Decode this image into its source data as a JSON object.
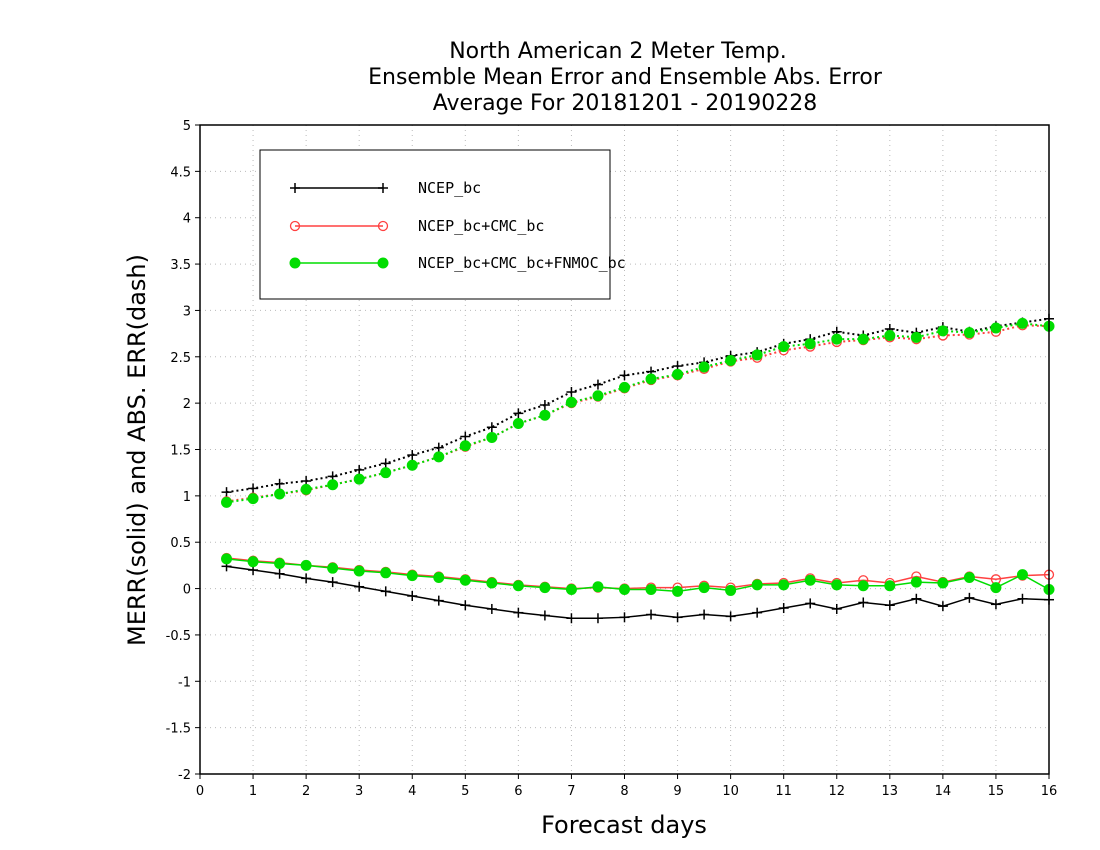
{
  "chart_data": {
    "type": "line",
    "title_lines": [
      "North American 2 Meter Temp.",
      "Ensemble Mean Error and Ensemble Abs. Error",
      "Average For 20181201 - 20190228"
    ],
    "xlabel": "Forecast days",
    "ylabel": "MERR(solid) and ABS. ERR(dash)",
    "xlim": [
      0,
      16
    ],
    "ylim": [
      -2,
      5
    ],
    "xticks": [
      "0",
      "1",
      "2",
      "3",
      "4",
      "5",
      "6",
      "7",
      "8",
      "9",
      "10",
      "11",
      "12",
      "13",
      "14",
      "15",
      "16"
    ],
    "yticks": [
      "-2",
      "-1.5",
      "-1",
      "-0.5",
      "0",
      "0.5",
      "1",
      "1.5",
      "2",
      "2.5",
      "3",
      "3.5",
      "4",
      "4.5",
      "5"
    ],
    "grid": true,
    "legend_position": "top-left",
    "x": [
      0.5,
      1,
      1.5,
      2,
      2.5,
      3,
      3.5,
      4,
      4.5,
      5,
      5.5,
      6,
      6.5,
      7,
      7.5,
      8,
      8.5,
      9,
      9.5,
      10,
      10.5,
      11,
      11.5,
      12,
      12.5,
      13,
      13.5,
      14,
      14.5,
      15,
      15.5,
      16
    ],
    "series": [
      {
        "name": "NCEP_bc",
        "color": "#000000",
        "marker": "plus",
        "merr": [
          0.24,
          0.2,
          0.16,
          0.11,
          0.07,
          0.02,
          -0.03,
          -0.08,
          -0.13,
          -0.18,
          -0.22,
          -0.26,
          -0.29,
          -0.32,
          -0.32,
          -0.31,
          -0.28,
          -0.31,
          -0.28,
          -0.3,
          -0.26,
          -0.21,
          -0.16,
          -0.22,
          -0.15,
          -0.18,
          -0.11,
          -0.19,
          -0.1,
          -0.17,
          -0.11,
          -0.12
        ],
        "abs_err": [
          1.04,
          1.08,
          1.13,
          1.16,
          1.21,
          1.28,
          1.35,
          1.44,
          1.52,
          1.64,
          1.74,
          1.89,
          1.98,
          2.12,
          2.2,
          2.3,
          2.34,
          2.4,
          2.44,
          2.51,
          2.55,
          2.64,
          2.69,
          2.77,
          2.73,
          2.8,
          2.76,
          2.82,
          2.77,
          2.83,
          2.87,
          2.91
        ]
      },
      {
        "name": "NCEP_bc+CMC_bc",
        "color": "#ff4040",
        "marker": "open-circle",
        "merr": [
          0.33,
          0.3,
          0.28,
          0.25,
          0.23,
          0.2,
          0.18,
          0.15,
          0.13,
          0.1,
          0.07,
          0.04,
          0.02,
          0.0,
          0.01,
          0.0,
          0.01,
          0.01,
          0.03,
          0.01,
          0.05,
          0.06,
          0.11,
          0.06,
          0.09,
          0.06,
          0.13,
          0.07,
          0.13,
          0.1,
          0.14,
          0.15
        ],
        "abs_err": [
          0.94,
          0.98,
          1.02,
          1.06,
          1.12,
          1.18,
          1.25,
          1.33,
          1.42,
          1.53,
          1.63,
          1.78,
          1.87,
          2.0,
          2.07,
          2.16,
          2.25,
          2.3,
          2.37,
          2.45,
          2.49,
          2.57,
          2.61,
          2.66,
          2.68,
          2.71,
          2.69,
          2.73,
          2.74,
          2.77,
          2.84,
          2.83
        ]
      },
      {
        "name": "NCEP_bc+CMC_bc+FNMOC_bc",
        "color": "#00dd00",
        "marker": "filled-circle",
        "merr": [
          0.32,
          0.29,
          0.27,
          0.25,
          0.22,
          0.19,
          0.17,
          0.14,
          0.12,
          0.09,
          0.06,
          0.03,
          0.01,
          -0.01,
          0.02,
          -0.01,
          -0.01,
          -0.03,
          0.01,
          -0.02,
          0.04,
          0.04,
          0.09,
          0.04,
          0.03,
          0.03,
          0.07,
          0.06,
          0.12,
          0.01,
          0.15,
          -0.01
        ],
        "abs_err": [
          0.93,
          0.97,
          1.02,
          1.07,
          1.12,
          1.18,
          1.25,
          1.33,
          1.42,
          1.54,
          1.63,
          1.78,
          1.87,
          2.01,
          2.08,
          2.17,
          2.26,
          2.31,
          2.39,
          2.46,
          2.52,
          2.61,
          2.64,
          2.69,
          2.69,
          2.73,
          2.71,
          2.78,
          2.76,
          2.81,
          2.86,
          2.83
        ]
      }
    ]
  }
}
